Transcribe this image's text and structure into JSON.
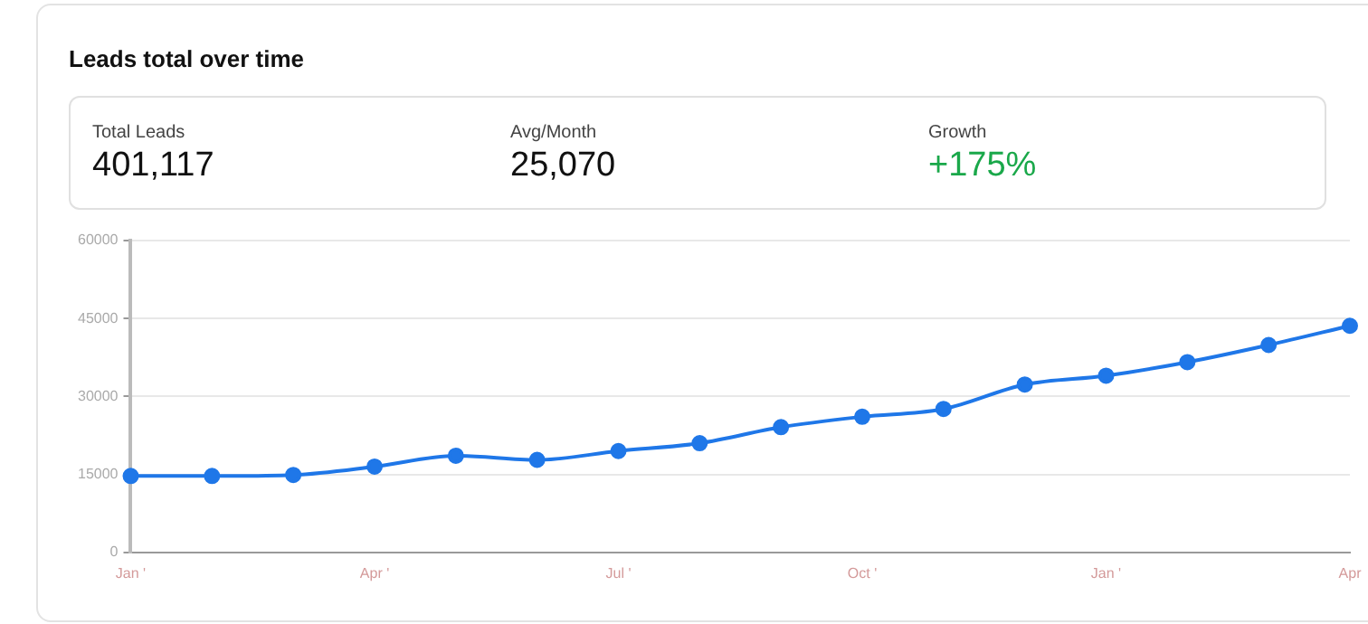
{
  "chart_data": {
    "type": "line",
    "title": "Leads total over time",
    "annotations": [
      "Total Leads",
      "401,117",
      "Avg/Month",
      "25,070",
      "Growth",
      "+175%"
    ],
    "categories": [
      "Jan '",
      null,
      null,
      "Apr '",
      null,
      null,
      "Jul '",
      null,
      null,
      "Oct '",
      null,
      null,
      "Jan '",
      null,
      null,
      "Apr"
    ],
    "series": [
      {
        "color": "#1f77e8",
        "values": [
          14700,
          14700,
          14900,
          16500,
          18600,
          17800,
          19500,
          21000,
          24100,
          26100,
          27600,
          32300,
          34000,
          36600,
          39900,
          43600
        ]
      }
    ],
    "ylim": [
      0,
      60000
    ],
    "yticks": [
      0,
      15000,
      30000,
      45000,
      60000
    ],
    "grid": "y",
    "legend": false,
    "marker": "circle",
    "line_style": "solid"
  }
}
